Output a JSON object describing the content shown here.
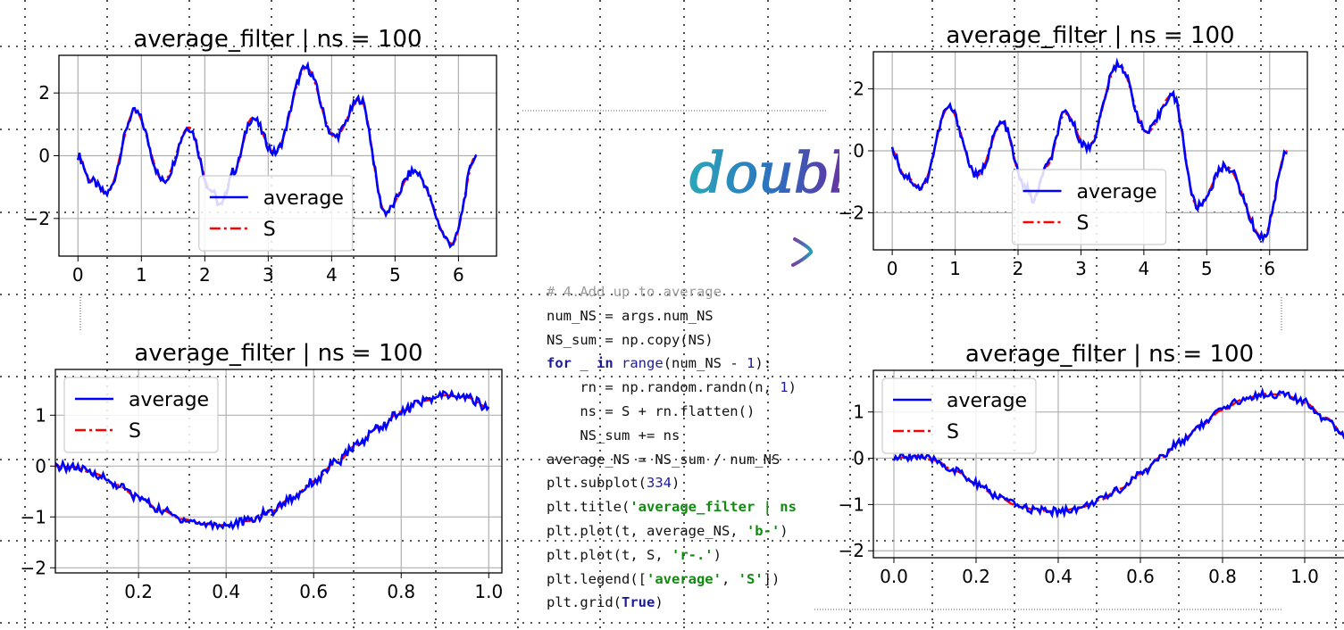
{
  "colors": {
    "average": "#0000ff",
    "S": "#ff0000",
    "grid": "#b0b0b0",
    "frame": "#000000"
  },
  "overlay": {
    "word": "double"
  },
  "code": {
    "lines": [
      [
        {
          "t": "# 4.Add up to average",
          "c": "comment"
        }
      ],
      [
        {
          "t": "num_NS = args.num_NS"
        }
      ],
      [
        {
          "t": "NS_sum = np.copy(NS)"
        }
      ],
      [
        {
          "t": "for",
          "c": "kw"
        },
        {
          "t": " _ "
        },
        {
          "t": "in",
          "c": "kw"
        },
        {
          "t": " "
        },
        {
          "t": "range",
          "c": "bi"
        },
        {
          "t": "(num_NS - "
        },
        {
          "t": "1",
          "c": "num"
        },
        {
          "t": "):"
        }
      ],
      [
        {
          "t": "    rn = np.random.randn(n, "
        },
        {
          "t": "1",
          "c": "num"
        },
        {
          "t": ")"
        }
      ],
      [
        {
          "t": "    ns = S + rn.flatten()"
        }
      ],
      [
        {
          "t": "    NS_sum += ns"
        }
      ],
      [
        {
          "t": "average_NS = NS_sum / num_NS"
        }
      ],
      [
        {
          "t": "plt.subplot("
        },
        {
          "t": "334",
          "c": "num"
        },
        {
          "t": ")"
        }
      ],
      [
        {
          "t": "plt.title("
        },
        {
          "t": "'average_filter | ns",
          "c": "str"
        }
      ],
      [
        {
          "t": "plt.plot(t, average_NS, "
        },
        {
          "t": "'b-'",
          "c": "str"
        },
        {
          "t": ")"
        }
      ],
      [
        {
          "t": "plt.plot(t, S, "
        },
        {
          "t": "'r-.'",
          "c": "str"
        },
        {
          "t": ")"
        }
      ],
      [
        {
          "t": "plt.legend(["
        },
        {
          "t": "'average'",
          "c": "str"
        },
        {
          "t": ", "
        },
        {
          "t": "'S'",
          "c": "str"
        },
        {
          "t": "])"
        }
      ],
      [
        {
          "t": "plt.grid("
        },
        {
          "t": "True",
          "c": "kw"
        },
        {
          "t": ")"
        }
      ]
    ]
  },
  "chart_data": [
    {
      "type": "line",
      "title": "average_filter | ns = 100",
      "xlabel": "",
      "ylabel": "",
      "xlim": [
        -0.3,
        6.6
      ],
      "ylim": [
        -3.2,
        3.2
      ],
      "xticks": [
        0,
        1,
        2,
        3,
        4,
        5,
        6
      ],
      "yticks": [
        -2,
        0,
        2
      ],
      "grid": true,
      "legend_position": "lower-center",
      "series": [
        {
          "name": "average",
          "style": "solid",
          "color": "#0000ff",
          "x": [
            0,
            0.2,
            0.45,
            0.9,
            1.35,
            1.75,
            2.1,
            2.25,
            2.45,
            2.75,
            3.1,
            3.6,
            4.05,
            4.45,
            4.85,
            5.3,
            5.9,
            6.28
          ],
          "y": [
            0,
            -0.8,
            -1.2,
            1.4,
            -0.8,
            0.9,
            -1.1,
            -1.6,
            -0.5,
            1.2,
            0.1,
            2.8,
            0.6,
            1.8,
            -1.8,
            -0.5,
            -2.8,
            0
          ]
        },
        {
          "name": "S",
          "style": "dashdot",
          "color": "#ff0000",
          "x": [
            0,
            0.2,
            0.45,
            0.9,
            1.35,
            1.75,
            2.1,
            2.25,
            2.45,
            2.75,
            3.1,
            3.6,
            4.05,
            4.45,
            4.85,
            5.3,
            5.9,
            6.28
          ],
          "y": [
            0,
            -0.8,
            -1.2,
            1.4,
            -0.8,
            0.9,
            -1.1,
            -1.6,
            -0.5,
            1.2,
            0.1,
            2.8,
            0.6,
            1.8,
            -1.8,
            -0.5,
            -2.8,
            0
          ]
        }
      ]
    },
    {
      "type": "line",
      "title": "average_filter | ns = 100",
      "xlabel": "",
      "ylabel": "",
      "xlim": [
        -0.3,
        6.6
      ],
      "ylim": [
        -3.2,
        3.2
      ],
      "xticks": [
        0,
        1,
        2,
        3,
        4,
        5,
        6
      ],
      "yticks": [
        -2,
        0,
        2
      ],
      "grid": true,
      "legend_position": "lower-center",
      "series": [
        {
          "name": "average",
          "style": "solid",
          "color": "#0000ff",
          "x": [
            0,
            0.2,
            0.45,
            0.9,
            1.35,
            1.75,
            2.1,
            2.25,
            2.45,
            2.75,
            3.1,
            3.6,
            4.05,
            4.45,
            4.85,
            5.3,
            5.9,
            6.28
          ],
          "y": [
            0,
            -0.8,
            -1.2,
            1.4,
            -0.8,
            0.9,
            -1.1,
            -1.6,
            -0.5,
            1.2,
            0.1,
            2.8,
            0.6,
            1.8,
            -1.8,
            -0.5,
            -2.8,
            0
          ]
        },
        {
          "name": "S",
          "style": "dashdot",
          "color": "#ff0000",
          "x": [
            0,
            0.2,
            0.45,
            0.9,
            1.35,
            1.75,
            2.1,
            2.25,
            2.45,
            2.75,
            3.1,
            3.6,
            4.05,
            4.45,
            4.85,
            5.3,
            5.9,
            6.28
          ],
          "y": [
            0,
            -0.8,
            -1.2,
            1.4,
            -0.8,
            0.9,
            -1.1,
            -1.6,
            -0.5,
            1.2,
            0.1,
            2.8,
            0.6,
            1.8,
            -1.8,
            -0.5,
            -2.8,
            0
          ]
        }
      ]
    },
    {
      "type": "line",
      "title": "average_filter | ns = 100",
      "xlabel": "",
      "ylabel": "",
      "xlim": [
        0.01,
        1.03
      ],
      "ylim": [
        -2.1,
        1.9
      ],
      "xticks": [
        0.2,
        0.4,
        0.6,
        0.8,
        1.0
      ],
      "yticks": [
        -2,
        -1,
        0,
        1
      ],
      "grid": true,
      "legend_position": "upper-left",
      "series": [
        {
          "name": "average",
          "style": "solid",
          "color": "#0000ff",
          "x": [
            0,
            0.05,
            0.1,
            0.15,
            0.2,
            0.25,
            0.3,
            0.35,
            0.4,
            0.45,
            0.5,
            0.55,
            0.6,
            0.65,
            0.7,
            0.75,
            0.8,
            0.85,
            0.9,
            0.95,
            1.0
          ],
          "y": [
            0,
            -0.02,
            -0.15,
            -0.37,
            -0.62,
            -0.86,
            -1.04,
            -1.14,
            -1.16,
            -1.08,
            -0.9,
            -0.63,
            -0.3,
            0.06,
            0.42,
            0.77,
            1.07,
            1.28,
            1.39,
            1.35,
            1.15
          ]
        },
        {
          "name": "S",
          "style": "dashdot",
          "color": "#ff0000",
          "x": [
            0,
            0.05,
            0.1,
            0.15,
            0.2,
            0.25,
            0.3,
            0.35,
            0.4,
            0.45,
            0.5,
            0.55,
            0.6,
            0.65,
            0.7,
            0.75,
            0.8,
            0.85,
            0.9,
            0.95,
            1.0
          ],
          "y": [
            0,
            -0.02,
            -0.15,
            -0.37,
            -0.62,
            -0.86,
            -1.04,
            -1.14,
            -1.16,
            -1.08,
            -0.9,
            -0.63,
            -0.3,
            0.06,
            0.42,
            0.77,
            1.07,
            1.28,
            1.39,
            1.35,
            1.15
          ]
        }
      ]
    },
    {
      "type": "line",
      "title": "average_filter | ns = 100",
      "xlabel": "",
      "ylabel": "",
      "xlim": [
        -0.05,
        1.1
      ],
      "ylim": [
        -2.15,
        1.9
      ],
      "xticks": [
        0.0,
        0.2,
        0.4,
        0.6,
        0.8,
        1.0
      ],
      "yticks": [
        -2,
        -1,
        0,
        1
      ],
      "grid": true,
      "legend_position": "upper-left",
      "series": [
        {
          "name": "average",
          "style": "solid",
          "color": "#0000ff",
          "x": [
            0,
            0.05,
            0.1,
            0.15,
            0.2,
            0.25,
            0.3,
            0.35,
            0.4,
            0.45,
            0.5,
            0.55,
            0.6,
            0.65,
            0.7,
            0.75,
            0.8,
            0.85,
            0.9,
            0.95,
            1.0,
            1.05,
            1.1
          ],
          "y": [
            0,
            0.05,
            -0.05,
            -0.28,
            -0.55,
            -0.82,
            -1.02,
            -1.13,
            -1.15,
            -1.08,
            -0.91,
            -0.66,
            -0.34,
            0.02,
            0.38,
            0.73,
            1.04,
            1.27,
            1.39,
            1.37,
            1.2,
            0.88,
            0.48
          ]
        },
        {
          "name": "S",
          "style": "dashdot",
          "color": "#ff0000",
          "x": [
            0,
            0.05,
            0.1,
            0.15,
            0.2,
            0.25,
            0.3,
            0.35,
            0.4,
            0.45,
            0.5,
            0.55,
            0.6,
            0.65,
            0.7,
            0.75,
            0.8,
            0.85,
            0.9,
            0.95,
            1.0,
            1.05,
            1.1
          ],
          "y": [
            0,
            0.05,
            -0.05,
            -0.28,
            -0.55,
            -0.82,
            -1.02,
            -1.13,
            -1.15,
            -1.08,
            -0.91,
            -0.66,
            -0.34,
            0.02,
            0.38,
            0.73,
            1.04,
            1.27,
            1.39,
            1.37,
            1.2,
            0.88,
            0.48
          ]
        }
      ]
    }
  ]
}
